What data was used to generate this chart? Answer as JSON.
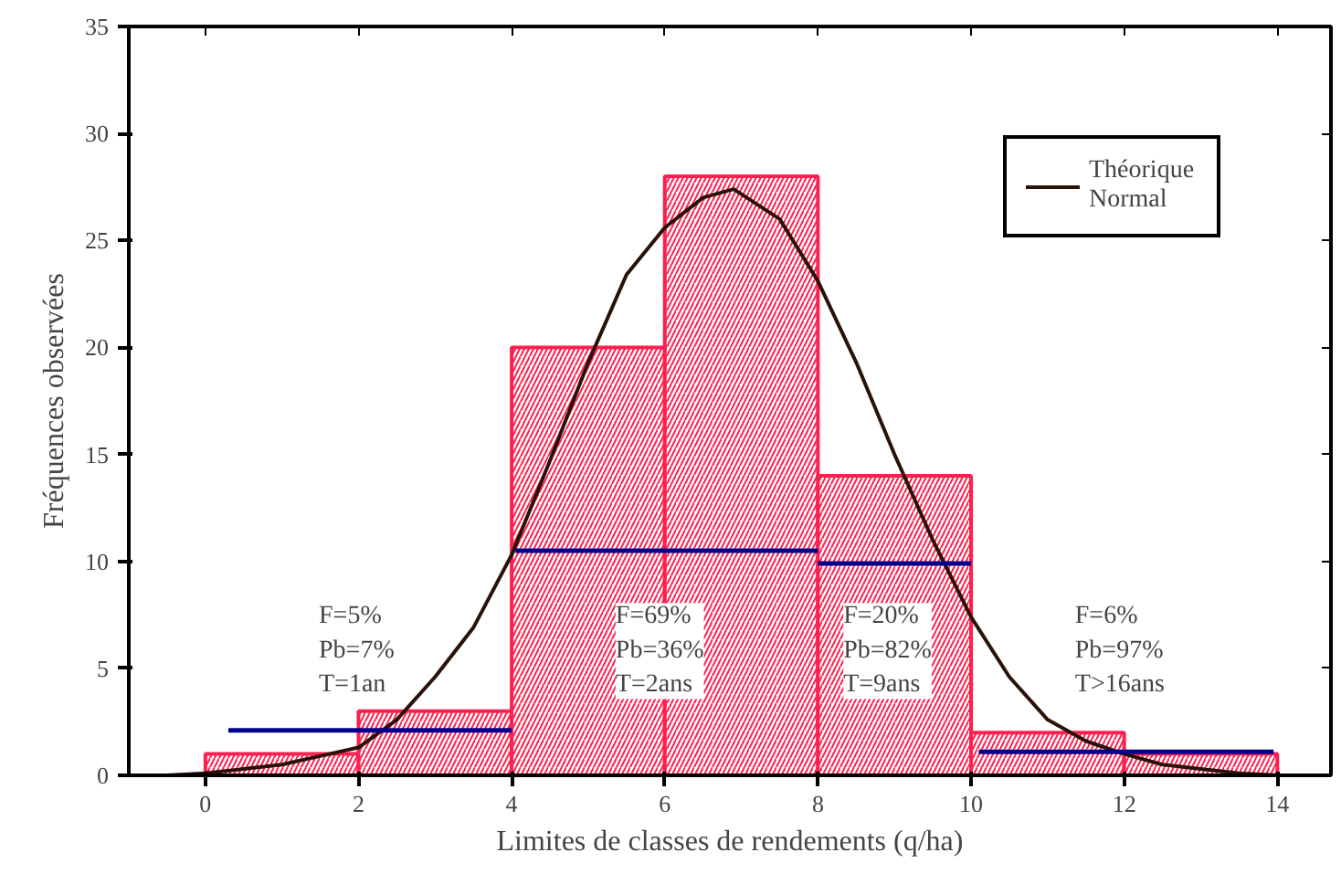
{
  "chart_data": {
    "type": "histogram",
    "xlabel": "Limites de classes de rendements (q/ha)",
    "ylabel": "Fréquences observées",
    "bins": [
      0,
      2,
      4,
      6,
      8,
      10,
      12,
      14
    ],
    "values": [
      1,
      3,
      20,
      28,
      14,
      2,
      1
    ],
    "color": "#ff1f4f",
    "series": [
      {
        "type": "line",
        "name": "Théorique Normal",
        "color": "#2a1208",
        "x": [
          -1,
          -0.5,
          0,
          0.5,
          1,
          1.5,
          2,
          2.5,
          3,
          3.5,
          4,
          4.5,
          5,
          5.5,
          6,
          6.5,
          6.9,
          7.5,
          8,
          8.5,
          9,
          9.5,
          10,
          10.5,
          11,
          11.5,
          12,
          12.5,
          13,
          13.5,
          14
        ],
        "values": [
          0,
          0,
          0.1,
          0.3,
          0.5,
          0.9,
          1.3,
          2.6,
          4.6,
          6.9,
          10.3,
          14.7,
          19.3,
          23.4,
          25.6,
          27,
          27.4,
          26,
          23.1,
          19.3,
          15,
          11,
          7.4,
          4.6,
          2.6,
          1.6,
          1,
          0.5,
          0.3,
          0.1,
          0
        ]
      },
      {
        "type": "line",
        "color": "#00008b",
        "x": [
          0.3,
          4
        ],
        "values": [
          2.1,
          2.1
        ]
      },
      {
        "type": "line",
        "color": "#00008b",
        "x": [
          4.05,
          8
        ],
        "values": [
          10.5,
          10.5
        ]
      },
      {
        "type": "line",
        "color": "#00008b",
        "x": [
          8,
          10
        ],
        "values": [
          9.9,
          9.9
        ]
      },
      {
        "type": "line",
        "color": "#00008b",
        "x": [
          10.1,
          13.95
        ],
        "values": [
          1.1,
          1.1
        ]
      }
    ],
    "annotations": [
      "F=5%\nPb=7%\nT=1an",
      "F=69%\nPb=36%\nT=2ans",
      "F=20%\nPb=82%\nT=9ans",
      "F=6%\nPb=97%\nT>16ans"
    ],
    "xlim": [
      -1,
      14.7
    ],
    "ylim": [
      0,
      35
    ],
    "xticks": [
      0,
      2,
      4,
      6,
      8,
      10,
      12,
      14
    ],
    "yticks": [
      0,
      5,
      10,
      15,
      20,
      25,
      30,
      35
    ],
    "grid": false,
    "legend": "top right"
  }
}
